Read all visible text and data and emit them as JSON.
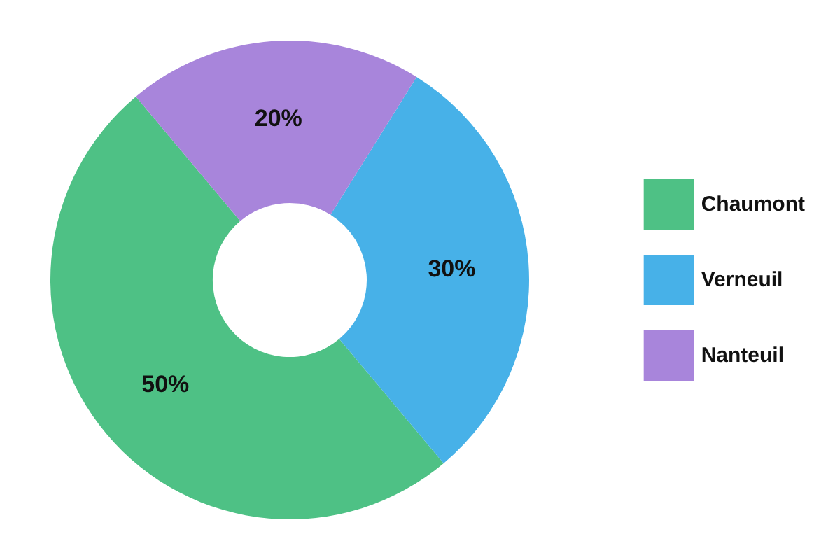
{
  "chart_data": {
    "type": "donut",
    "categories": [
      "Chaumont",
      "Verneuil",
      "Nanteuil"
    ],
    "values": [
      50,
      30,
      20
    ],
    "colors": [
      "#4ec185",
      "#47b1e8",
      "#a885db"
    ],
    "value_labels": [
      "50%",
      "30%",
      "20%"
    ],
    "legend": "right"
  }
}
